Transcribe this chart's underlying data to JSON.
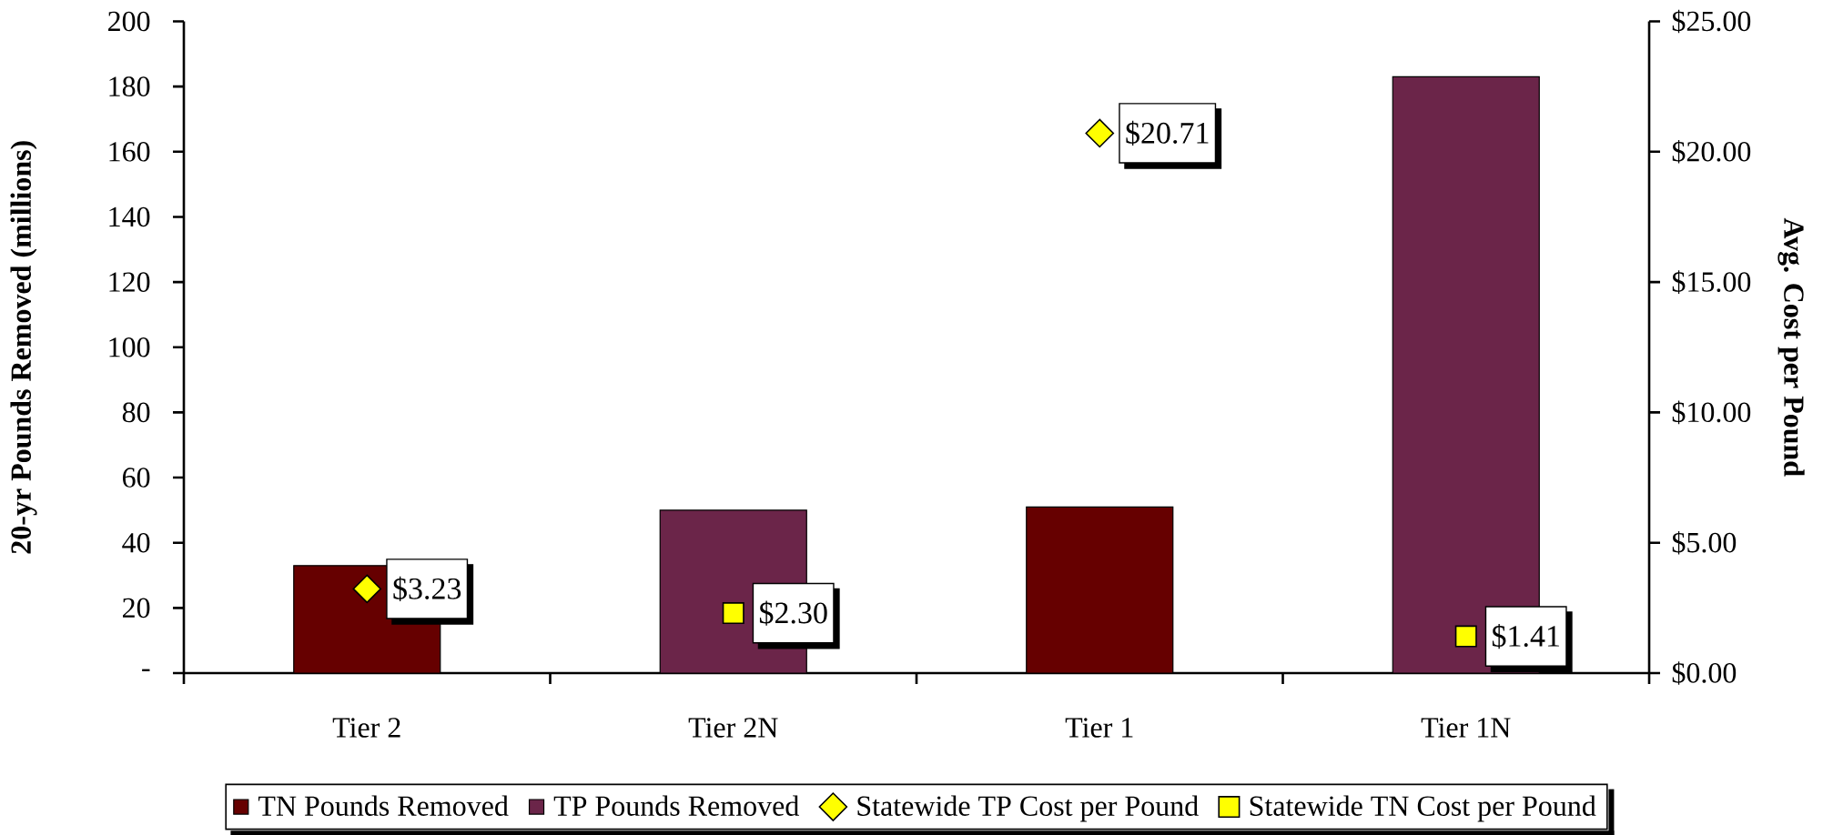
{
  "chart_data": {
    "type": "bar",
    "categories": [
      "Tier 2",
      "Tier 2N",
      "Tier 1",
      "Tier 1N"
    ],
    "ylabel": "20-yr Pounds Removed (millions)",
    "y2label": "Avg. Cost per Pound",
    "ylim": [
      0,
      200
    ],
    "yticks": [
      {
        "value": 0,
        "label": "-"
      },
      20,
      40,
      60,
      80,
      100,
      120,
      140,
      160,
      180,
      200
    ],
    "y2lim": [
      0,
      25
    ],
    "y2ticks": [
      {
        "value": 0,
        "label": "$0.00"
      },
      {
        "value": 5,
        "label": "$5.00"
      },
      {
        "value": 10,
        "label": "$10.00"
      },
      {
        "value": 15,
        "label": "$15.00"
      },
      {
        "value": 20,
        "label": "$20.00"
      },
      {
        "value": 25,
        "label": "$25.00"
      }
    ],
    "legend": "bottom",
    "series": [
      {
        "name": "TN Pounds Removed",
        "color": "#660000",
        "values": [
          33,
          null,
          51,
          null
        ]
      },
      {
        "name": "TP Pounds Removed",
        "color": "#6b2549",
        "values": [
          null,
          50,
          null,
          183
        ]
      },
      {
        "name": "Statewide TP Cost per Pound",
        "type": "scatter",
        "axis": "y2",
        "marker": "diamond",
        "color": "#ffff00",
        "values": [
          3.23,
          null,
          20.71,
          null
        ],
        "value_labels": [
          "$3.23",
          null,
          "$20.71",
          null
        ]
      },
      {
        "name": "Statewide TN Cost per Pound",
        "type": "scatter",
        "axis": "y2",
        "marker": "square",
        "color": "#ffff00",
        "values": [
          null,
          2.3,
          null,
          1.41
        ],
        "value_labels": [
          null,
          "$2.30",
          null,
          "$1.41"
        ]
      }
    ]
  }
}
